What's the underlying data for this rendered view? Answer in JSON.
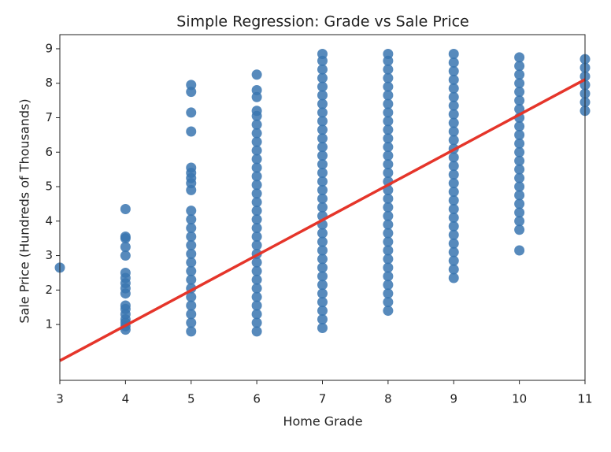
{
  "chart_data": {
    "type": "scatter",
    "title": "Simple Regression: Grade vs Sale Price",
    "xlabel": "Home Grade",
    "ylabel": "Sale Price (Hundreds of Thousands)",
    "xlim": [
      3,
      11
    ],
    "ylim": [
      -0.62,
      9.41
    ],
    "xticks": [
      3,
      4,
      5,
      6,
      7,
      8,
      9,
      10,
      11
    ],
    "yticks": [
      1,
      2,
      3,
      4,
      5,
      6,
      7,
      8,
      9
    ],
    "color": "#3a75b0",
    "groups": [
      {
        "x": 3,
        "values": [
          2.65
        ]
      },
      {
        "x": 4,
        "values": [
          0.85,
          0.95,
          1.05,
          1.15,
          1.3,
          1.45,
          1.55,
          1.9,
          2.05,
          2.2,
          2.35,
          2.5,
          3.0,
          3.25,
          3.5,
          3.55,
          4.35
        ]
      },
      {
        "x": 5,
        "values": [
          0.8,
          1.05,
          1.3,
          1.55,
          1.8,
          2.05,
          2.3,
          2.55,
          2.8,
          3.05,
          3.3,
          3.55,
          3.8,
          4.05,
          4.3,
          4.9,
          5.1,
          5.25,
          5.4,
          5.55,
          6.6,
          7.15,
          7.75,
          7.95
        ]
      },
      {
        "x": 6,
        "values": [
          0.8,
          1.05,
          1.3,
          1.55,
          1.8,
          2.05,
          2.3,
          2.55,
          2.8,
          3.05,
          3.3,
          3.55,
          3.8,
          4.05,
          4.3,
          4.55,
          4.8,
          5.05,
          5.3,
          5.55,
          5.8,
          6.05,
          6.3,
          6.55,
          6.8,
          7.05,
          7.2,
          7.6,
          7.8,
          8.25
        ]
      },
      {
        "x": 7,
        "values": [
          0.9,
          1.15,
          1.4,
          1.65,
          1.9,
          2.15,
          2.4,
          2.65,
          2.9,
          3.15,
          3.4,
          3.65,
          3.9,
          4.15,
          4.4,
          4.65,
          4.9,
          5.15,
          5.4,
          5.65,
          5.9,
          6.15,
          6.4,
          6.65,
          6.9,
          7.15,
          7.4,
          7.65,
          7.9,
          8.15,
          8.4,
          8.65,
          8.85
        ]
      },
      {
        "x": 8,
        "values": [
          1.4,
          1.65,
          1.9,
          2.15,
          2.4,
          2.65,
          2.9,
          3.15,
          3.4,
          3.65,
          3.9,
          4.15,
          4.4,
          4.65,
          4.9,
          5.15,
          5.4,
          5.65,
          5.9,
          6.15,
          6.4,
          6.65,
          6.9,
          7.15,
          7.4,
          7.65,
          7.9,
          8.15,
          8.4,
          8.65,
          8.85
        ]
      },
      {
        "x": 9,
        "values": [
          2.35,
          2.6,
          2.85,
          3.1,
          3.35,
          3.6,
          3.85,
          4.1,
          4.35,
          4.6,
          4.85,
          5.1,
          5.35,
          5.6,
          5.85,
          6.1,
          6.35,
          6.6,
          6.85,
          7.1,
          7.35,
          7.6,
          7.85,
          8.1,
          8.35,
          8.6,
          8.85
        ]
      },
      {
        "x": 10,
        "values": [
          3.15,
          3.75,
          4.0,
          4.25,
          4.5,
          4.75,
          5.0,
          5.25,
          5.5,
          5.75,
          6.0,
          6.25,
          6.5,
          6.75,
          7.0,
          7.25,
          7.5,
          7.75,
          8.0,
          8.25,
          8.5,
          8.75
        ]
      },
      {
        "x": 11,
        "values": [
          7.2,
          7.45,
          7.7,
          7.95,
          8.2,
          8.45,
          8.7
        ]
      }
    ],
    "regression": {
      "color": "#e5352a",
      "x": [
        3,
        11
      ],
      "values": [
        -0.05,
        8.11
      ]
    }
  }
}
